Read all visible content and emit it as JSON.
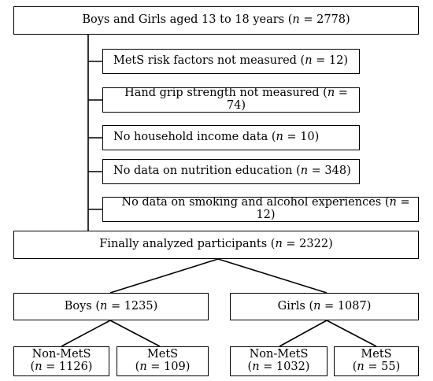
{
  "top": {
    "label": "Boys and Girls aged 13 to 18 years (",
    "n_sym": "n",
    "n_val": " = 2778)"
  },
  "exclusions": [
    {
      "label": "MetS risk factors not measured (",
      "n_sym": "n",
      "n_val": " = 12)"
    },
    {
      "label": "Hand grip strength not measured (",
      "n_sym": "n",
      "n_val": " = 74)"
    },
    {
      "label": "No household income data (",
      "n_sym": "n",
      "n_val": " = 10)"
    },
    {
      "label": "No data on nutrition education (",
      "n_sym": "n",
      "n_val": "  = 348)"
    },
    {
      "label": "No data on smoking and alcohol experiences (",
      "n_sym": "n",
      "n_val": " = 12)"
    }
  ],
  "final": {
    "label": "Finally analyzed participants  (",
    "n_sym": "n",
    "n_val": " = 2322)"
  },
  "boys": {
    "label": "Boys (",
    "n_sym": "n",
    "n_val": " = 1235)"
  },
  "girls": {
    "label": "Girls (",
    "n_sym": "n",
    "n_val": " = 1087)"
  },
  "boys_nonmets": {
    "label": "Non-MetS",
    "open": "(",
    "n_sym": "n",
    "n_val": " = 1126)"
  },
  "boys_mets": {
    "label": "MetS",
    "open": "(",
    "n_sym": "n",
    "n_val": " = 109)"
  },
  "girls_nonmets": {
    "label": "Non-MetS",
    "open": "(",
    "n_sym": "n",
    "n_val": " = 1032)"
  },
  "girls_mets": {
    "label": "MetS",
    "open": "(",
    "n_sym": "n",
    "n_val": " = 55)"
  }
}
